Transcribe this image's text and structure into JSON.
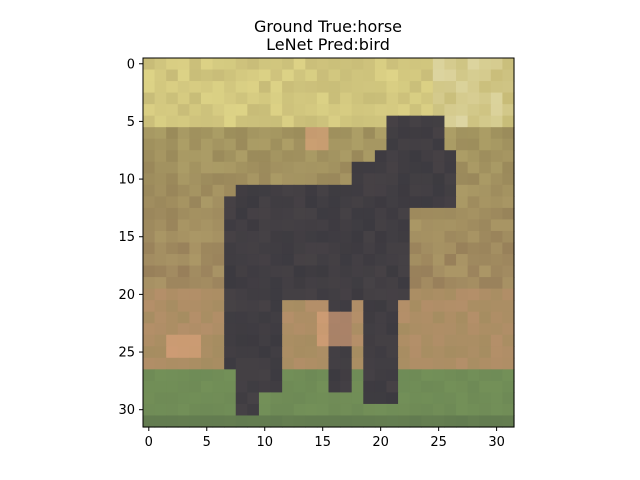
{
  "figure": {
    "title_lines": [
      "Ground True:horse",
      "LeNet Pred:bird"
    ]
  },
  "image": {
    "subject": "dark horse standing on grass, low-resolution 32x32 photo",
    "grid_size": [
      32,
      32
    ]
  },
  "axes": {
    "x_ticks": [
      "0",
      "5",
      "10",
      "15",
      "20",
      "25",
      "30"
    ],
    "y_ticks": [
      "0",
      "5",
      "10",
      "15",
      "20",
      "25",
      "30"
    ],
    "x_range": [
      -0.5,
      31.5
    ],
    "y_range": [
      -0.5,
      31.5
    ]
  },
  "colors": {
    "axis": "#000000",
    "background": "#ffffff",
    "sky_light": "#e6dc8c",
    "foliage": "#9a8c5a",
    "horse": "#3c3a40",
    "ground": "#6e8a56",
    "sand": "#c09070"
  }
}
